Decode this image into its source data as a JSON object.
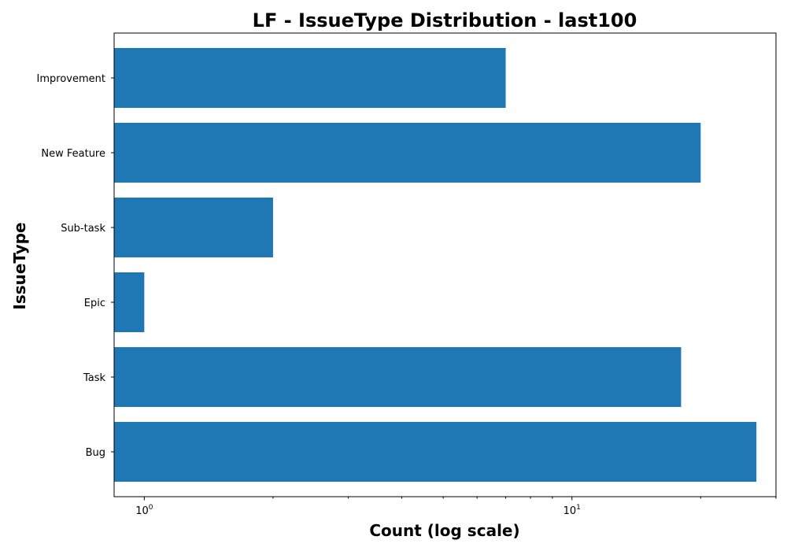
{
  "chart_data": {
    "type": "bar",
    "orientation": "horizontal",
    "title": "LF - IssueType Distribution - last100",
    "xlabel": "Count (log scale)",
    "ylabel": "IssueType",
    "x_scale": "log",
    "xlim": [
      0.85,
      30
    ],
    "categories": [
      "Bug",
      "Task",
      "Epic",
      "Sub-task",
      "New Feature",
      "Improvement"
    ],
    "values": [
      27,
      18,
      1,
      2,
      20,
      7
    ],
    "major_ticks": [
      {
        "value": 1,
        "base": "10",
        "exp": "0"
      },
      {
        "value": 10,
        "base": "10",
        "exp": "1"
      }
    ],
    "grid": false,
    "bar_color": "#1f77b4"
  }
}
